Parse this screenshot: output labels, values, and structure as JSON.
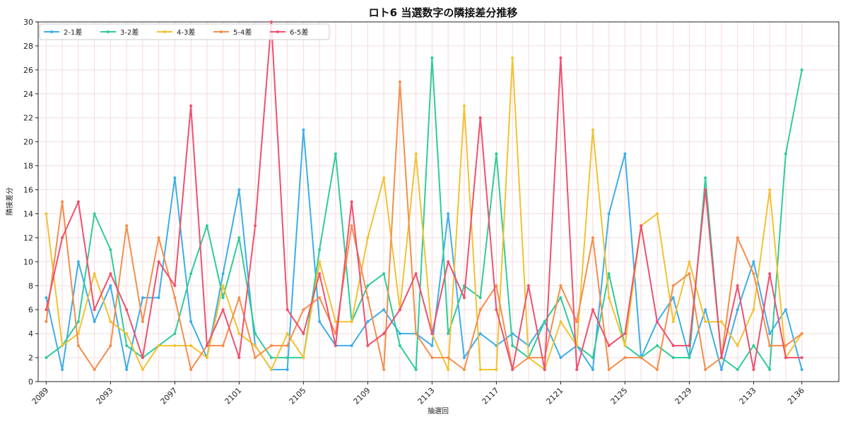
{
  "chart_data": {
    "type": "line",
    "title": "ロト6 当選数字の隣接差分推移",
    "xlabel": "抽選回",
    "ylabel": "隣接差分",
    "ylim": [
      0,
      30
    ],
    "yticks": [
      0,
      2,
      4,
      6,
      8,
      10,
      12,
      14,
      16,
      18,
      20,
      22,
      24,
      26,
      28,
      30
    ],
    "xticks": [
      2089,
      2093,
      2097,
      2101,
      2105,
      2109,
      2113,
      2117,
      2121,
      2125,
      2129,
      2133,
      2136
    ],
    "xlim": [
      2088.5,
      2138.3
    ],
    "grid": true,
    "legend_position": "top-left",
    "x": [
      2089,
      2090,
      2091,
      2092,
      2093,
      2094,
      2095,
      2096,
      2097,
      2098,
      2099,
      2100,
      2101,
      2102,
      2103,
      2104,
      2105,
      2106,
      2107,
      2108,
      2109,
      2110,
      2111,
      2112,
      2113,
      2114,
      2115,
      2116,
      2117,
      2118,
      2119,
      2120,
      2121,
      2122,
      2123,
      2124,
      2125,
      2126,
      2127,
      2128,
      2129,
      2130,
      2131,
      2132,
      2133,
      2134,
      2135,
      2136
    ],
    "series": [
      {
        "name": "2-1差",
        "color": "#3daee9",
        "values": [
          7,
          1,
          10,
          5,
          8,
          1,
          7,
          7,
          17,
          5,
          2,
          9,
          16,
          3,
          1,
          1,
          21,
          5,
          3,
          3,
          5,
          6,
          4,
          4,
          3,
          14,
          2,
          4,
          3,
          4,
          3,
          5,
          2,
          3,
          1,
          14,
          19,
          2,
          5,
          7,
          2,
          6,
          1,
          6,
          10,
          4,
          6,
          1
        ]
      },
      {
        "name": "3-2差",
        "color": "#2ecc9a",
        "values": [
          2,
          3,
          5,
          14,
          11,
          3,
          2,
          3,
          4,
          9,
          13,
          7,
          12,
          4,
          2,
          2,
          2,
          11,
          19,
          5,
          8,
          9,
          3,
          1,
          27,
          4,
          8,
          7,
          19,
          3,
          2,
          5,
          7,
          3,
          2,
          9,
          3,
          2,
          3,
          2,
          2,
          17,
          2,
          1,
          3,
          1,
          19,
          26
        ]
      },
      {
        "name": "4-3差",
        "color": "#f1c232",
        "values": [
          14,
          3,
          4,
          9,
          5,
          4,
          1,
          3,
          3,
          3,
          2,
          8,
          4,
          3,
          1,
          4,
          2,
          10,
          5,
          5,
          12,
          17,
          6,
          19,
          4,
          1,
          23,
          1,
          1,
          27,
          2,
          1,
          5,
          3,
          21,
          7,
          3,
          13,
          14,
          5,
          10,
          5,
          5,
          3,
          6,
          16,
          2,
          4
        ]
      },
      {
        "name": "5-4差",
        "color": "#f58d4b",
        "values": [
          5,
          15,
          3,
          1,
          3,
          13,
          5,
          12,
          7,
          1,
          3,
          3,
          7,
          2,
          3,
          3,
          6,
          7,
          4,
          13,
          7,
          1,
          25,
          4,
          2,
          2,
          1,
          6,
          8,
          1,
          2,
          2,
          8,
          5,
          12,
          1,
          2,
          2,
          1,
          8,
          9,
          1,
          2,
          12,
          9,
          3,
          3,
          4
        ]
      },
      {
        "name": "6-5差",
        "color": "#f0506e",
        "values": [
          6,
          12,
          15,
          6,
          9,
          6,
          2,
          10,
          8,
          23,
          3,
          6,
          2,
          13,
          30,
          6,
          4,
          9,
          3,
          15,
          3,
          4,
          6,
          9,
          4,
          10,
          7,
          22,
          6,
          1,
          8,
          1,
          27,
          1,
          6,
          3,
          4,
          13,
          5,
          3,
          3,
          16,
          2,
          8,
          1,
          9,
          2,
          2
        ]
      }
    ]
  }
}
